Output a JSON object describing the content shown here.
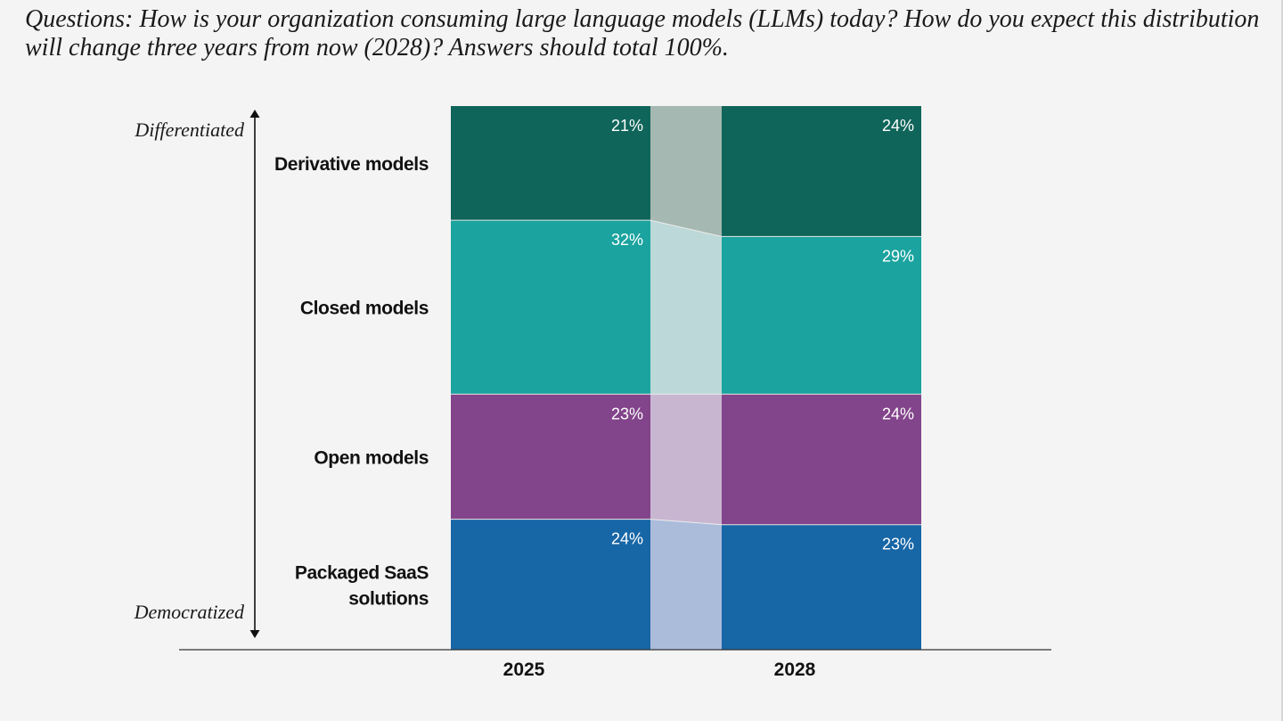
{
  "question": "Questions: How is your organization consuming large language models (LLMs) today? How do you expect this distribution will change three years from now (2028)? Answers should total 100%.",
  "axis_ends": {
    "top": "Differentiated",
    "bottom": "Democratized"
  },
  "chart_data": {
    "type": "bar",
    "stacked": true,
    "categories": [
      "2025",
      "2028"
    ],
    "series": [
      {
        "name": "Derivative models",
        "label_lines": [
          "Derivative models"
        ],
        "values": [
          21,
          24
        ],
        "labels": [
          "21%",
          "24%"
        ],
        "color": "#10655a",
        "band_color": "#a5b8b1"
      },
      {
        "name": "Closed models",
        "label_lines": [
          "Closed models"
        ],
        "values": [
          32,
          29
        ],
        "labels": [
          "32%",
          "29%"
        ],
        "color": "#1aa39f",
        "band_color": "#bdd8d8"
      },
      {
        "name": "Open models",
        "label_lines": [
          "Open models"
        ],
        "values": [
          23,
          24
        ],
        "labels": [
          "23%",
          "24%"
        ],
        "color": "#82448a",
        "band_color": "#c8b6d1"
      },
      {
        "name": "Packaged SaaS solutions",
        "label_lines": [
          "Packaged SaaS",
          "solutions"
        ],
        "values": [
          24,
          23
        ],
        "labels": [
          "24%",
          "23%"
        ],
        "color": "#1766a6",
        "band_color": "#abbcdb"
      }
    ],
    "ylim": [
      0,
      100
    ],
    "xlabel": "",
    "ylabel": ""
  }
}
